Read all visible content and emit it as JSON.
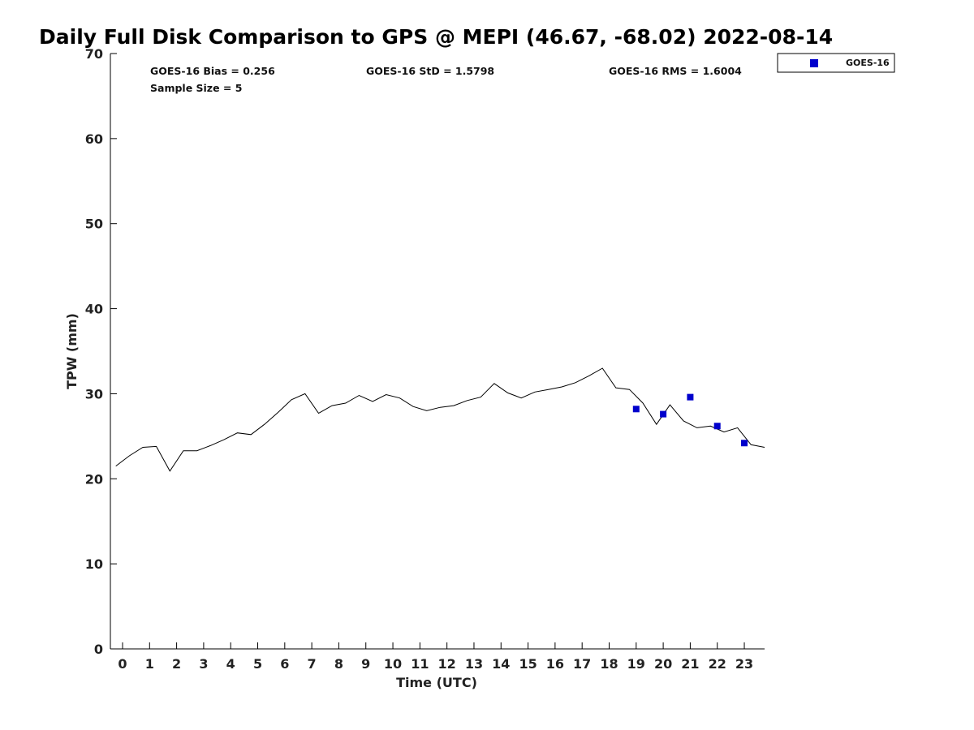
{
  "chart_data": {
    "type": "line",
    "title": "Daily Full Disk Comparison to GPS @ MEPI (46.67, -68.02) 2022-08-14",
    "xlabel": "Time (UTC)",
    "ylabel": "TPW (mm)",
    "xlim": [
      -0.45,
      23.75
    ],
    "ylim": [
      0,
      70
    ],
    "x_ticks": [
      "0",
      "1",
      "2",
      "3",
      "4",
      "5",
      "6",
      "7",
      "8",
      "9",
      "10",
      "11",
      "12",
      "13",
      "14",
      "15",
      "16",
      "17",
      "18",
      "19",
      "20",
      "21",
      "22",
      "23"
    ],
    "y_ticks": [
      "0",
      "10",
      "20",
      "30",
      "40",
      "50",
      "60",
      "70"
    ],
    "grid": false,
    "legend": {
      "position": "top-right-outside",
      "entries": [
        "GOES-16"
      ]
    },
    "stats": {
      "bias": "GOES-16 Bias = 0.256",
      "std": "GOES-16 StD = 1.5798",
      "rms": "GOES-16 RMS = 1.6004",
      "sample": "Sample Size = 5"
    },
    "colors": {
      "line": "#000000",
      "goes16": "#0000cc"
    },
    "series": [
      {
        "type": "line",
        "x": [
          -0.25,
          0.25,
          0.75,
          1.25,
          1.75,
          2.25,
          2.75,
          3.25,
          3.75,
          4.25,
          4.75,
          5.25,
          5.75,
          6.25,
          6.75,
          7.25,
          7.75,
          8.25,
          8.75,
          9.25,
          9.75,
          10.25,
          10.75,
          11.25,
          11.75,
          12.25,
          12.75,
          13.25,
          13.75,
          14.25,
          14.75,
          15.25,
          15.75,
          16.25,
          16.75,
          17.25,
          17.75,
          18.25,
          18.75,
          19.25,
          19.75,
          20.25,
          20.75,
          21.25,
          21.75,
          22.25,
          22.75,
          23.25,
          23.75
        ],
        "y": [
          21.5,
          22.7,
          23.7,
          23.8,
          20.9,
          23.3,
          23.3,
          23.9,
          24.6,
          25.4,
          25.2,
          26.4,
          27.8,
          29.3,
          30.0,
          27.7,
          28.6,
          28.9,
          29.8,
          29.1,
          29.9,
          29.5,
          28.5,
          28.0,
          28.4,
          28.6,
          29.2,
          29.6,
          31.2,
          30.1,
          29.5,
          30.2,
          30.5,
          30.8,
          31.3,
          32.1,
          33.0,
          30.7,
          30.5,
          28.9,
          26.4,
          28.7,
          26.8,
          26.0,
          26.2,
          25.5,
          26.0,
          24.0,
          23.7
        ]
      },
      {
        "name": "GOES-16",
        "type": "scatter",
        "x": [
          19,
          20,
          21,
          22,
          23
        ],
        "y": [
          28.2,
          27.6,
          29.6,
          26.2,
          24.2
        ]
      }
    ]
  }
}
